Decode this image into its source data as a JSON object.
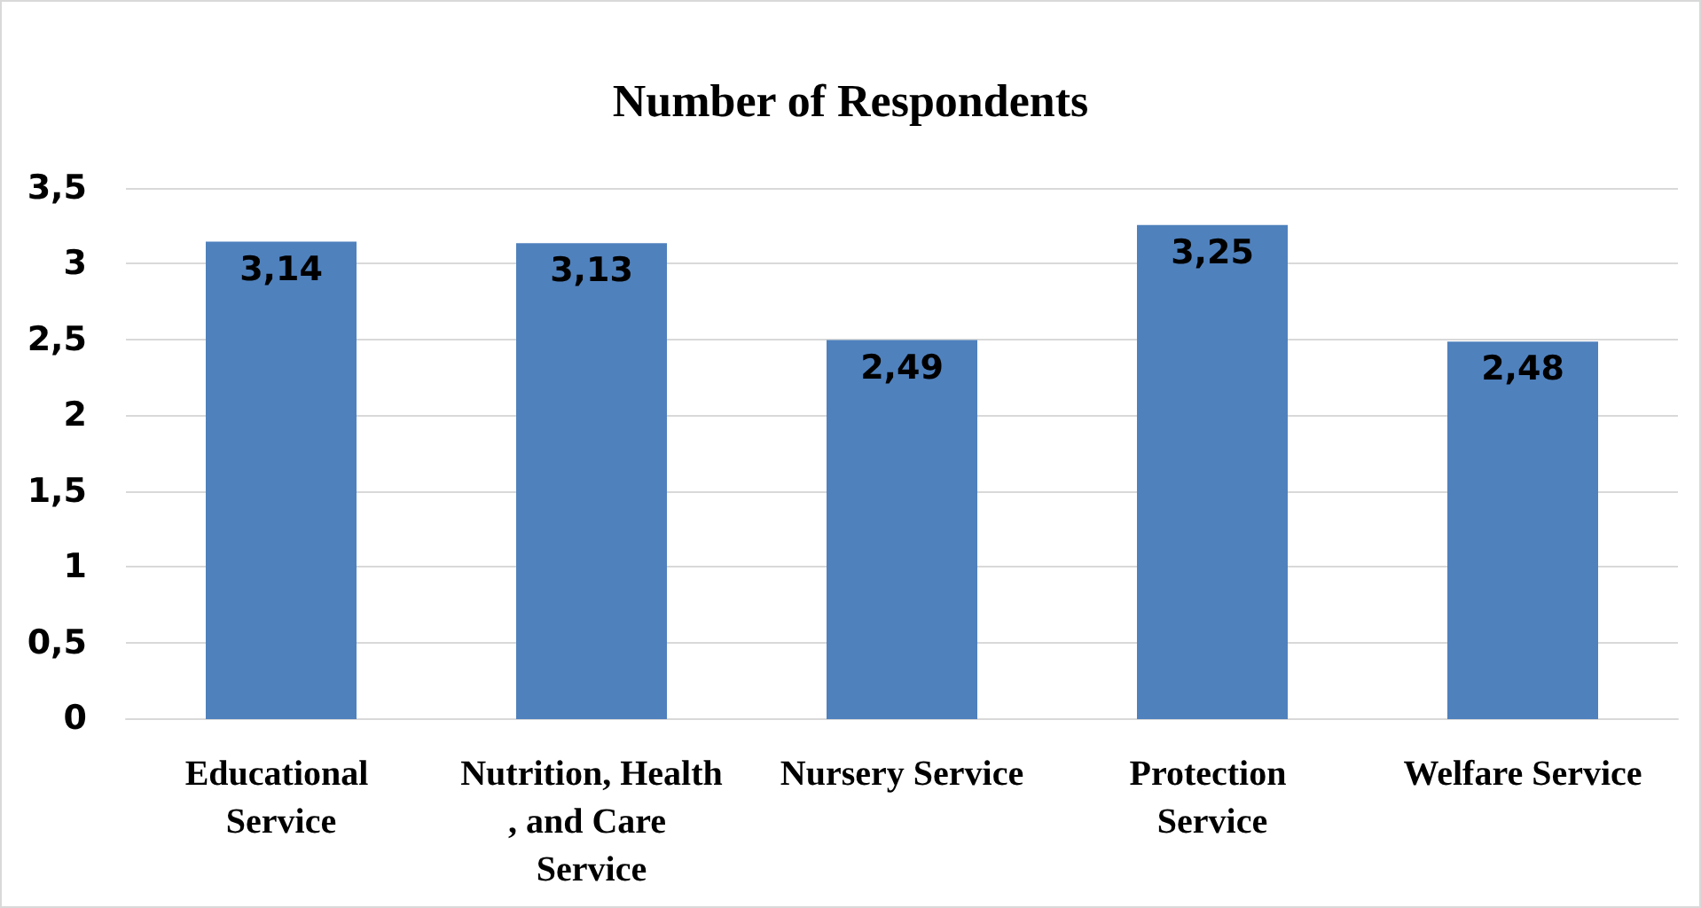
{
  "chart_data": {
    "type": "bar",
    "title": "Number of Respondents",
    "categories": [
      "Educational Service",
      "Nutrition, Health, and Care Service",
      "Nursery Service",
      "Protection Service",
      "Welfare Service"
    ],
    "values": [
      3.14,
      3.13,
      2.49,
      3.25,
      2.48
    ],
    "value_labels": [
      "3,14",
      "3,13",
      "2,49",
      "3,25",
      "2,48"
    ],
    "color": "#4f81bd",
    "ylim": [
      0,
      3.5
    ],
    "yticks": [
      0,
      {
        "value": 0.5,
        "label": "0,5"
      },
      1,
      {
        "value": 1.5,
        "label": "1,5"
      },
      2,
      {
        "value": 2.5,
        "label": "2,5"
      },
      3,
      {
        "value": 3.5,
        "label": "3,5"
      }
    ],
    "grid": "y"
  }
}
